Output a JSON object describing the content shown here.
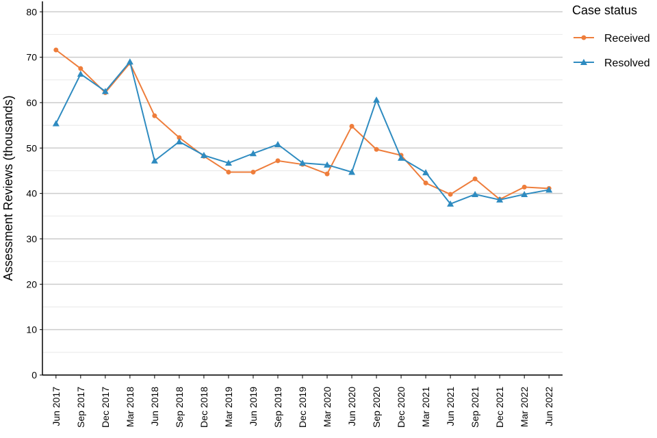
{
  "chart_data": {
    "type": "line",
    "y_label": "Assessment Reviews (thousands)",
    "legend_title": "Case status",
    "legend_position": "right",
    "categories": [
      "Jun 2017",
      "Sep 2017",
      "Dec 2017",
      "Mar 2018",
      "Jun 2018",
      "Sep 2018",
      "Dec 2018",
      "Mar 2019",
      "Jun 2019",
      "Sep 2019",
      "Dec 2019",
      "Mar 2020",
      "Jun 2020",
      "Sep 2020",
      "Dec 2020",
      "Mar 2021",
      "Jun 2021",
      "Sep 2021",
      "Dec 2021",
      "Mar 2022",
      "Jun 2022"
    ],
    "series": [
      {
        "name": "Received",
        "color": "#ee7d3b",
        "marker": "circle",
        "values": [
          71.6,
          67.5,
          62.2,
          68.7,
          57.1,
          52.3,
          48.2,
          44.7,
          44.7,
          47.2,
          46.4,
          44.3,
          54.8,
          49.7,
          48.4,
          42.3,
          39.8,
          43.2,
          38.7,
          41.4,
          41.1
        ]
      },
      {
        "name": "Resolved",
        "color": "#2e8bc0",
        "marker": "triangle",
        "values": [
          55.4,
          66.3,
          62.5,
          69.0,
          47.2,
          51.4,
          48.4,
          46.7,
          48.8,
          50.8,
          46.7,
          46.3,
          44.7,
          60.6,
          47.8,
          44.6,
          37.7,
          39.8,
          38.6,
          39.8,
          40.8
        ]
      }
    ],
    "ylim": [
      0,
      82.3
    ],
    "yticks": [
      0,
      10,
      20,
      30,
      40,
      50,
      60,
      70,
      80
    ],
    "y_minor_ticks": [
      5,
      15,
      25,
      35,
      45,
      55,
      65,
      75
    ],
    "grid": true
  }
}
